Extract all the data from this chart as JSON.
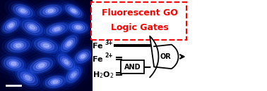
{
  "bg_color": "#000000",
  "cell_dark_bg": "#000033",
  "cell_color_outer": "#0000aa",
  "cell_color_inner": "#3366ff",
  "cell_color_bright": "#6699ff",
  "cell_color_core": "#99bbff",
  "title_line1": "Fluorescent GO",
  "title_line2": "Logic Gates",
  "title_color": "#ff0000",
  "text_color": "#000000",
  "and_label": "AND",
  "or_label": "OR",
  "scale_bar_color": "#ffffff",
  "cells": [
    [
      0.3,
      0.15,
      0.12,
      0.07,
      -30
    ],
    [
      0.6,
      0.1,
      0.11,
      0.06,
      10
    ],
    [
      0.8,
      0.18,
      0.1,
      0.06,
      50
    ],
    [
      0.15,
      0.3,
      0.11,
      0.07,
      -10
    ],
    [
      0.45,
      0.28,
      0.13,
      0.07,
      20
    ],
    [
      0.72,
      0.32,
      0.11,
      0.06,
      -40
    ],
    [
      0.9,
      0.38,
      0.09,
      0.06,
      30
    ],
    [
      0.2,
      0.5,
      0.12,
      0.07,
      5
    ],
    [
      0.5,
      0.5,
      0.13,
      0.07,
      -15
    ],
    [
      0.75,
      0.52,
      0.11,
      0.06,
      45
    ],
    [
      0.35,
      0.7,
      0.12,
      0.07,
      -25
    ],
    [
      0.62,
      0.68,
      0.12,
      0.06,
      15
    ],
    [
      0.85,
      0.7,
      0.1,
      0.06,
      -5
    ],
    [
      0.12,
      0.72,
      0.1,
      0.06,
      35
    ],
    [
      0.25,
      0.88,
      0.11,
      0.06,
      -20
    ],
    [
      0.55,
      0.88,
      0.12,
      0.06,
      10
    ],
    [
      0.8,
      0.88,
      0.1,
      0.05,
      -30
    ]
  ]
}
